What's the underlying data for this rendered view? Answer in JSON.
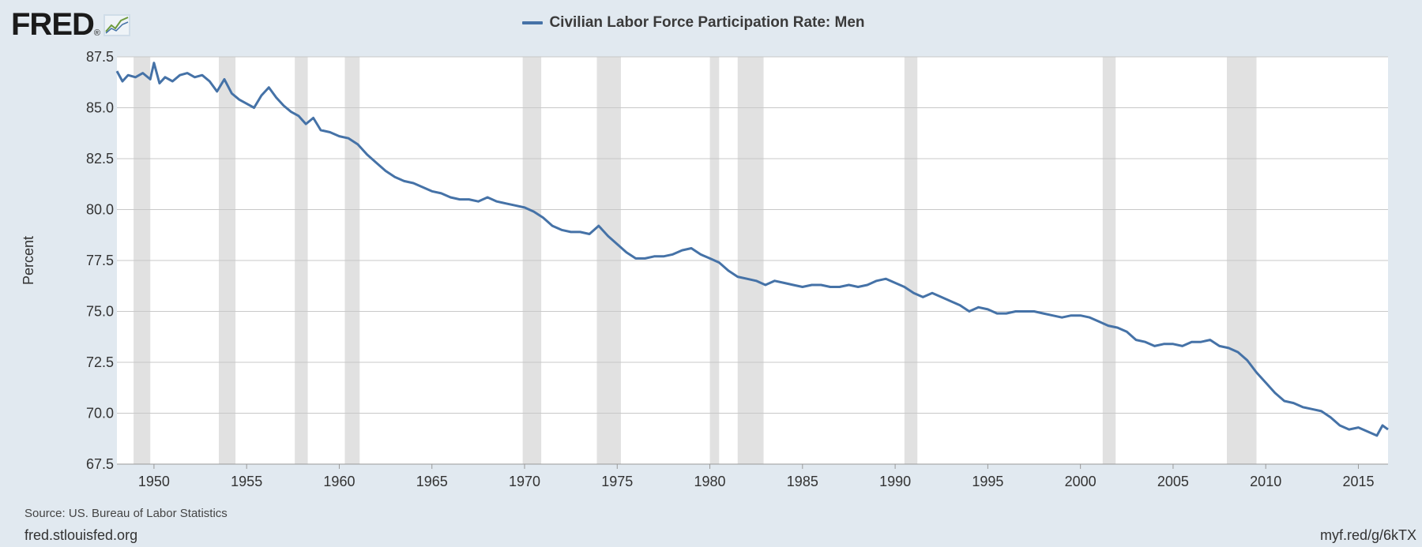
{
  "logo": {
    "text": "FRED",
    "registered": "®"
  },
  "colors": {
    "series": "#4572a7",
    "recession": "#e1e1e1",
    "plot_bg": "#ffffff",
    "page_bg": "#e1e9f0",
    "grid": "#c8c8c8"
  },
  "footer": {
    "source": "Source: US. Bureau of Labor Statistics",
    "site": "fred.stlouisfed.org",
    "short_url": "myf.red/g/6kTX"
  },
  "chart_data": {
    "type": "line",
    "title": "",
    "ylabel": "Percent",
    "xlabel": "",
    "xlim": [
      1948.0,
      2016.6
    ],
    "ylim": [
      67.5,
      87.5
    ],
    "yticks": [
      "87.5",
      "85.0",
      "82.5",
      "80.0",
      "77.5",
      "75.0",
      "72.5",
      "70.0",
      "67.5"
    ],
    "xticks": [
      "1950",
      "1955",
      "1960",
      "1965",
      "1970",
      "1975",
      "1980",
      "1985",
      "1990",
      "1995",
      "2000",
      "2005",
      "2010",
      "2015"
    ],
    "grid": true,
    "legend_position": "top-center",
    "recessions": [
      [
        1948.9,
        1949.8
      ],
      [
        1953.5,
        1954.4
      ],
      [
        1957.6,
        1958.3
      ],
      [
        1960.3,
        1961.1
      ],
      [
        1969.9,
        1970.9
      ],
      [
        1973.9,
        1975.2
      ],
      [
        1980.0,
        1980.5
      ],
      [
        1981.5,
        1982.9
      ],
      [
        1990.5,
        1991.2
      ],
      [
        2001.2,
        2001.9
      ],
      [
        2007.9,
        2009.5
      ]
    ],
    "series": [
      {
        "name": "Civilian Labor Force Participation Rate: Men",
        "x": [
          1948.0,
          1948.3,
          1948.6,
          1949.0,
          1949.4,
          1949.8,
          1950.0,
          1950.3,
          1950.6,
          1951.0,
          1951.4,
          1951.8,
          1952.2,
          1952.6,
          1953.0,
          1953.4,
          1953.8,
          1954.2,
          1954.6,
          1955.0,
          1955.4,
          1955.8,
          1956.2,
          1956.6,
          1957.0,
          1957.4,
          1957.8,
          1958.2,
          1958.6,
          1959.0,
          1959.5,
          1960.0,
          1960.5,
          1961.0,
          1961.5,
          1962.0,
          1962.5,
          1963.0,
          1963.5,
          1964.0,
          1964.5,
          1965.0,
          1965.5,
          1966.0,
          1966.5,
          1967.0,
          1967.5,
          1968.0,
          1968.5,
          1969.0,
          1969.5,
          1970.0,
          1970.5,
          1971.0,
          1971.5,
          1972.0,
          1972.5,
          1973.0,
          1973.5,
          1974.0,
          1974.5,
          1975.0,
          1975.5,
          1976.0,
          1976.5,
          1977.0,
          1977.5,
          1978.0,
          1978.5,
          1979.0,
          1979.5,
          1980.0,
          1980.5,
          1981.0,
          1981.5,
          1982.0,
          1982.5,
          1983.0,
          1983.5,
          1984.0,
          1984.5,
          1985.0,
          1985.5,
          1986.0,
          1986.5,
          1987.0,
          1987.5,
          1988.0,
          1988.5,
          1989.0,
          1989.5,
          1990.0,
          1990.5,
          1991.0,
          1991.5,
          1992.0,
          1992.5,
          1993.0,
          1993.5,
          1994.0,
          1994.5,
          1995.0,
          1995.5,
          1996.0,
          1996.5,
          1997.0,
          1997.5,
          1998.0,
          1998.5,
          1999.0,
          1999.5,
          2000.0,
          2000.5,
          2001.0,
          2001.5,
          2002.0,
          2002.5,
          2003.0,
          2003.5,
          2004.0,
          2004.5,
          2005.0,
          2005.5,
          2006.0,
          2006.5,
          2007.0,
          2007.5,
          2008.0,
          2008.5,
          2009.0,
          2009.5,
          2010.0,
          2010.5,
          2011.0,
          2011.5,
          2012.0,
          2012.5,
          2013.0,
          2013.5,
          2014.0,
          2014.5,
          2015.0,
          2015.5,
          2016.0,
          2016.3,
          2016.6
        ],
        "values": [
          86.8,
          86.3,
          86.6,
          86.5,
          86.7,
          86.4,
          87.2,
          86.2,
          86.5,
          86.3,
          86.6,
          86.7,
          86.5,
          86.6,
          86.3,
          85.8,
          86.4,
          85.7,
          85.4,
          85.2,
          85.0,
          85.6,
          86.0,
          85.5,
          85.1,
          84.8,
          84.6,
          84.2,
          84.5,
          83.9,
          83.8,
          83.6,
          83.5,
          83.2,
          82.7,
          82.3,
          81.9,
          81.6,
          81.4,
          81.3,
          81.1,
          80.9,
          80.8,
          80.6,
          80.5,
          80.5,
          80.4,
          80.6,
          80.4,
          80.3,
          80.2,
          80.1,
          79.9,
          79.6,
          79.2,
          79.0,
          78.9,
          78.9,
          78.8,
          79.2,
          78.7,
          78.3,
          77.9,
          77.6,
          77.6,
          77.7,
          77.7,
          77.8,
          78.0,
          78.1,
          77.8,
          77.6,
          77.4,
          77.0,
          76.7,
          76.6,
          76.5,
          76.3,
          76.5,
          76.4,
          76.3,
          76.2,
          76.3,
          76.3,
          76.2,
          76.2,
          76.3,
          76.2,
          76.3,
          76.5,
          76.6,
          76.4,
          76.2,
          75.9,
          75.7,
          75.9,
          75.7,
          75.5,
          75.3,
          75.0,
          75.2,
          75.1,
          74.9,
          74.9,
          75.0,
          75.0,
          75.0,
          74.9,
          74.8,
          74.7,
          74.8,
          74.8,
          74.7,
          74.5,
          74.3,
          74.2,
          74.0,
          73.6,
          73.5,
          73.3,
          73.4,
          73.4,
          73.3,
          73.5,
          73.5,
          73.6,
          73.3,
          73.2,
          73.0,
          72.6,
          72.0,
          71.5,
          71.0,
          70.6,
          70.5,
          70.3,
          70.2,
          70.1,
          69.8,
          69.4,
          69.2,
          69.3,
          69.1,
          68.9,
          69.4,
          69.2
        ]
      }
    ]
  }
}
